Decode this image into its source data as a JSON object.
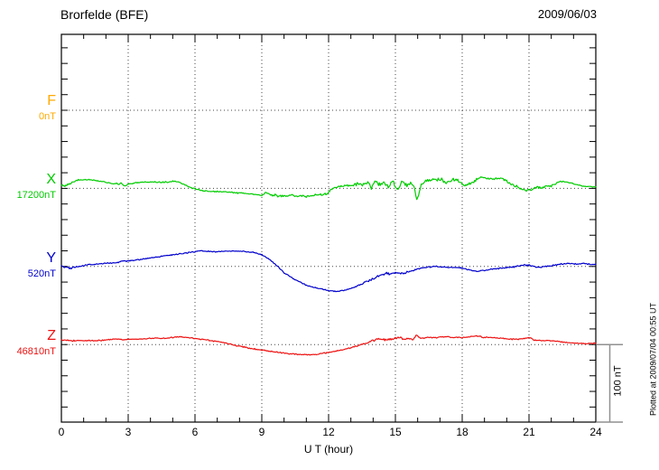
{
  "header": {
    "title": "Brorfelde (BFE)",
    "date": "2009/06/03"
  },
  "plot_note": "Plotted at 2009/07/04 00:55 UT",
  "chart_data": {
    "type": "line",
    "title": "Brorfelde (BFE)",
    "date": "2009/06/03",
    "xlabel": "U T (hour)",
    "x_range": [
      0,
      24
    ],
    "x_tick_labels": [
      "0",
      "3",
      "6",
      "9",
      "12",
      "15",
      "18",
      "21",
      "24"
    ],
    "grid_hours": [
      3,
      6,
      9,
      12,
      15,
      18,
      21
    ],
    "y_tick_step_nT": 20,
    "channel_spacing_nT": 100,
    "scale_bar": {
      "label": "100 nT",
      "nT": 100
    },
    "point_format": "[hour_UT, delta_nT_from_baseline, noise_amplitude_nT]",
    "channels": [
      {
        "name": "F",
        "baseline": "0nT",
        "color": "#FFAA00",
        "points": []
      },
      {
        "name": "X",
        "baseline": "17200nT",
        "color": "#00CC00",
        "points": [
          [
            0,
            4,
            2
          ],
          [
            0.2,
            3,
            2
          ],
          [
            0.5,
            8,
            1
          ],
          [
            0.8,
            11,
            1
          ],
          [
            1.2,
            11,
            1
          ],
          [
            1.6,
            10,
            1
          ],
          [
            2.0,
            8,
            1
          ],
          [
            2.4,
            6,
            1
          ],
          [
            2.7,
            6,
            2
          ],
          [
            2.85,
            3,
            1
          ],
          [
            3.0,
            5,
            1
          ],
          [
            3.3,
            7,
            1
          ],
          [
            3.7,
            8,
            1
          ],
          [
            4.2,
            8,
            1
          ],
          [
            4.7,
            8,
            1
          ],
          [
            5.0,
            9,
            1
          ],
          [
            5.3,
            8,
            1
          ],
          [
            5.6,
            4,
            1
          ],
          [
            5.9,
            0,
            1
          ],
          [
            6.2,
            -2,
            1
          ],
          [
            6.6,
            -4,
            1
          ],
          [
            7.0,
            -4,
            1
          ],
          [
            7.5,
            -5,
            1
          ],
          [
            8.0,
            -6,
            1
          ],
          [
            8.5,
            -7,
            1
          ],
          [
            9.0,
            -9,
            1
          ],
          [
            9.2,
            -5,
            1
          ],
          [
            9.4,
            -8,
            2
          ],
          [
            9.8,
            -10,
            2
          ],
          [
            10.2,
            -9,
            2
          ],
          [
            10.6,
            -10,
            2
          ],
          [
            11.0,
            -10,
            2
          ],
          [
            11.4,
            -9,
            2
          ],
          [
            11.8,
            -8,
            2
          ],
          [
            12.0,
            -5,
            2
          ],
          [
            12.2,
            0,
            2
          ],
          [
            12.5,
            3,
            2
          ],
          [
            13.0,
            4,
            2
          ],
          [
            13.3,
            6,
            3
          ],
          [
            13.6,
            5,
            3
          ],
          [
            13.8,
            8,
            3
          ],
          [
            13.92,
            -1,
            2
          ],
          [
            14.05,
            9,
            3
          ],
          [
            14.3,
            6,
            4
          ],
          [
            14.5,
            7,
            5
          ],
          [
            14.7,
            2,
            5
          ],
          [
            14.9,
            9,
            5
          ],
          [
            15.1,
            -3,
            4
          ],
          [
            15.3,
            8,
            4
          ],
          [
            15.5,
            3,
            4
          ],
          [
            15.7,
            7,
            3
          ],
          [
            15.85,
            2,
            2
          ],
          [
            15.95,
            -15,
            1
          ],
          [
            16.05,
            -8,
            2
          ],
          [
            16.15,
            4,
            3
          ],
          [
            16.3,
            8,
            3
          ],
          [
            16.6,
            11,
            3
          ],
          [
            17.0,
            12,
            3
          ],
          [
            17.3,
            8,
            3
          ],
          [
            17.6,
            11,
            3
          ],
          [
            17.9,
            9,
            3
          ],
          [
            18.1,
            4,
            3
          ],
          [
            18.4,
            6,
            2
          ],
          [
            18.7,
            13,
            2
          ],
          [
            19.0,
            14,
            2
          ],
          [
            19.3,
            12,
            3
          ],
          [
            19.6,
            13,
            2
          ],
          [
            19.9,
            11,
            2
          ],
          [
            20.2,
            5,
            2
          ],
          [
            20.5,
            2,
            2
          ],
          [
            20.8,
            -3,
            2
          ],
          [
            21.1,
            -1,
            2
          ],
          [
            21.4,
            1,
            2
          ],
          [
            21.7,
            2,
            2
          ],
          [
            22.0,
            3,
            2
          ],
          [
            22.4,
            9,
            1
          ],
          [
            22.7,
            8,
            1
          ],
          [
            23.0,
            6,
            1
          ],
          [
            23.4,
            3,
            1
          ],
          [
            23.7,
            2,
            1
          ],
          [
            24,
            2,
            1
          ]
        ]
      },
      {
        "name": "Y",
        "baseline": "520nT",
        "color": "#0000CC",
        "points": [
          [
            0,
            0,
            2
          ],
          [
            0.4,
            -2,
            2
          ],
          [
            0.8,
            0,
            1
          ],
          [
            1.2,
            2,
            1
          ],
          [
            1.6,
            3,
            1
          ],
          [
            2.0,
            4,
            1
          ],
          [
            2.5,
            5,
            1
          ],
          [
            2.8,
            7,
            1
          ],
          [
            3.0,
            7,
            1
          ],
          [
            3.5,
            9,
            1
          ],
          [
            4.0,
            11,
            1
          ],
          [
            4.5,
            13,
            1
          ],
          [
            5.0,
            15,
            1
          ],
          [
            5.5,
            17,
            1
          ],
          [
            6.0,
            19,
            1
          ],
          [
            6.3,
            20,
            1
          ],
          [
            6.7,
            19,
            1
          ],
          [
            7.2,
            19,
            1
          ],
          [
            7.7,
            20,
            1
          ],
          [
            8.2,
            19,
            1
          ],
          [
            8.6,
            18,
            1
          ],
          [
            9.0,
            15,
            1
          ],
          [
            9.3,
            10,
            1
          ],
          [
            9.6,
            3,
            1
          ],
          [
            10.0,
            -8,
            1
          ],
          [
            10.5,
            -17,
            1
          ],
          [
            11.0,
            -24,
            1
          ],
          [
            11.5,
            -28,
            1
          ],
          [
            12.0,
            -31,
            1
          ],
          [
            12.4,
            -32,
            1
          ],
          [
            12.8,
            -30,
            1
          ],
          [
            13.2,
            -26,
            1
          ],
          [
            13.6,
            -21,
            2
          ],
          [
            14.0,
            -16,
            2
          ],
          [
            14.3,
            -12,
            3
          ],
          [
            14.6,
            -9,
            3
          ],
          [
            15.0,
            -8,
            2
          ],
          [
            15.3,
            -9,
            2
          ],
          [
            15.7,
            -6,
            1
          ],
          [
            16.0,
            -3,
            1
          ],
          [
            16.4,
            -1,
            1
          ],
          [
            16.8,
            0,
            1
          ],
          [
            17.2,
            -1,
            1
          ],
          [
            17.6,
            -1,
            1
          ],
          [
            18.0,
            -2,
            1
          ],
          [
            18.4,
            -5,
            1
          ],
          [
            18.7,
            -6,
            1
          ],
          [
            19.0,
            -5,
            1
          ],
          [
            19.4,
            -3,
            1
          ],
          [
            19.8,
            -2,
            1
          ],
          [
            20.2,
            -1,
            1
          ],
          [
            20.6,
            1,
            2
          ],
          [
            20.9,
            2,
            2
          ],
          [
            21.2,
            0,
            1
          ],
          [
            21.5,
            -1,
            1
          ],
          [
            22.0,
            1,
            1
          ],
          [
            22.4,
            3,
            1
          ],
          [
            22.8,
            4,
            1
          ],
          [
            23.2,
            3,
            1
          ],
          [
            23.5,
            4,
            1
          ],
          [
            23.8,
            2,
            1
          ],
          [
            24,
            3,
            1
          ]
        ]
      },
      {
        "name": "Z",
        "baseline": "46810nT",
        "color": "#EE1111",
        "points": [
          [
            0,
            6,
            1
          ],
          [
            0.5,
            5,
            1
          ],
          [
            1.0,
            5,
            1
          ],
          [
            1.5,
            5,
            1
          ],
          [
            2.0,
            6,
            1
          ],
          [
            2.4,
            7,
            1
          ],
          [
            2.8,
            6,
            1
          ],
          [
            3.2,
            7,
            1
          ],
          [
            3.6,
            7,
            1
          ],
          [
            4.0,
            8,
            1
          ],
          [
            4.5,
            8,
            1
          ],
          [
            5.0,
            9,
            1
          ],
          [
            5.3,
            10,
            1
          ],
          [
            5.7,
            9,
            1
          ],
          [
            6.0,
            8,
            1
          ],
          [
            6.5,
            6,
            1
          ],
          [
            7.0,
            4,
            1
          ],
          [
            7.5,
            1,
            1
          ],
          [
            8.0,
            -2,
            1
          ],
          [
            8.5,
            -5,
            1
          ],
          [
            9.0,
            -7,
            1
          ],
          [
            9.5,
            -9,
            1
          ],
          [
            10.0,
            -11,
            1
          ],
          [
            10.4,
            -12,
            1
          ],
          [
            10.8,
            -13,
            1
          ],
          [
            11.2,
            -13,
            1
          ],
          [
            11.6,
            -12,
            1
          ],
          [
            12.0,
            -10,
            1
          ],
          [
            12.4,
            -8,
            1
          ],
          [
            13.0,
            -4,
            1
          ],
          [
            13.5,
            0,
            1
          ],
          [
            14.0,
            5,
            2
          ],
          [
            14.3,
            7,
            2
          ],
          [
            14.6,
            6,
            2
          ],
          [
            15.0,
            8,
            2
          ],
          [
            15.2,
            9,
            2
          ],
          [
            15.4,
            7,
            2
          ],
          [
            15.6,
            8,
            1
          ],
          [
            15.8,
            6,
            1
          ],
          [
            15.95,
            13,
            1
          ],
          [
            16.1,
            8,
            1
          ],
          [
            16.4,
            9,
            1
          ],
          [
            16.8,
            9,
            1
          ],
          [
            17.2,
            10,
            1
          ],
          [
            17.6,
            9,
            1
          ],
          [
            18.0,
            9,
            1
          ],
          [
            18.4,
            10,
            1
          ],
          [
            18.7,
            11,
            1
          ],
          [
            19.0,
            9,
            1
          ],
          [
            19.4,
            9,
            1
          ],
          [
            19.8,
            8,
            1
          ],
          [
            20.2,
            7,
            1
          ],
          [
            20.6,
            7,
            1
          ],
          [
            21.05,
            9,
            1
          ],
          [
            21.2,
            6,
            1
          ],
          [
            21.6,
            5,
            1
          ],
          [
            22.0,
            5,
            1
          ],
          [
            22.5,
            3,
            1
          ],
          [
            23.0,
            2,
            1
          ],
          [
            23.5,
            1,
            1
          ],
          [
            24,
            2,
            1
          ]
        ]
      }
    ]
  }
}
